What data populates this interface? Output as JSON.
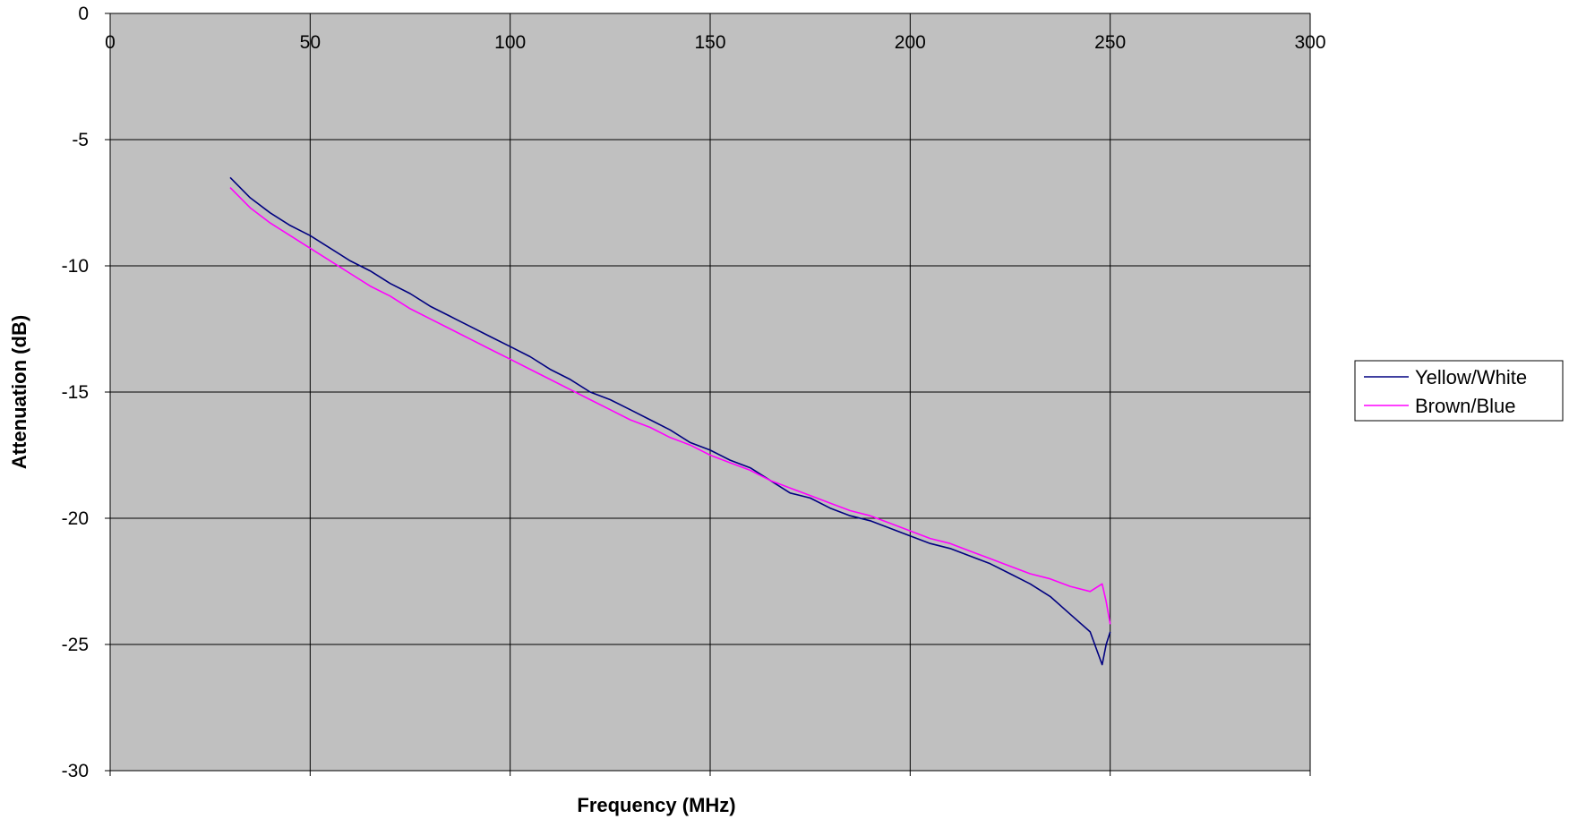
{
  "chart_data": {
    "type": "line",
    "xlabel": "Frequency (MHz)",
    "ylabel": "Attenuation (dB)",
    "xlim": [
      0,
      300
    ],
    "ylim": [
      -30,
      0
    ],
    "x_ticks": [
      0,
      50,
      100,
      150,
      200,
      250,
      300
    ],
    "y_ticks": [
      0,
      -5,
      -10,
      -15,
      -20,
      -25,
      -30
    ],
    "x_tick_labels": [
      "0",
      "50",
      "100",
      "150",
      "200",
      "250",
      "300"
    ],
    "y_tick_labels": [
      "0",
      "-5",
      "-10",
      "-15",
      "-20",
      "-25",
      "-30"
    ],
    "x_tick_position": "top",
    "grid": true,
    "plot_background": "#c0c0c0",
    "legend_placement": "right",
    "series": [
      {
        "name": "Yellow/White",
        "color": "#000080",
        "x": [
          30,
          35,
          40,
          45,
          50,
          55,
          60,
          65,
          70,
          75,
          80,
          85,
          90,
          95,
          100,
          105,
          110,
          115,
          120,
          125,
          130,
          135,
          140,
          145,
          150,
          155,
          160,
          165,
          170,
          175,
          180,
          185,
          190,
          195,
          200,
          205,
          210,
          215,
          220,
          225,
          230,
          235,
          240,
          245,
          248,
          249,
          250
        ],
        "y": [
          -6.5,
          -7.3,
          -7.9,
          -8.4,
          -8.8,
          -9.3,
          -9.8,
          -10.2,
          -10.7,
          -11.1,
          -11.6,
          -12.0,
          -12.4,
          -12.8,
          -13.2,
          -13.6,
          -14.1,
          -14.5,
          -15.0,
          -15.3,
          -15.7,
          -16.1,
          -16.5,
          -17.0,
          -17.3,
          -17.7,
          -18.0,
          -18.5,
          -19.0,
          -19.2,
          -19.6,
          -19.9,
          -20.1,
          -20.4,
          -20.7,
          -21.0,
          -21.2,
          -21.5,
          -21.8,
          -22.2,
          -22.6,
          -23.1,
          -23.8,
          -24.5,
          -25.8,
          -25.0,
          -24.5
        ]
      },
      {
        "name": "Brown/Blue",
        "color": "#ff00ff",
        "x": [
          30,
          35,
          40,
          45,
          50,
          55,
          60,
          65,
          70,
          75,
          80,
          85,
          90,
          95,
          100,
          105,
          110,
          115,
          120,
          125,
          130,
          135,
          140,
          145,
          150,
          155,
          160,
          165,
          170,
          175,
          180,
          185,
          190,
          195,
          200,
          205,
          210,
          215,
          220,
          225,
          230,
          235,
          240,
          245,
          248,
          249,
          250
        ],
        "y": [
          -6.9,
          -7.7,
          -8.3,
          -8.8,
          -9.3,
          -9.8,
          -10.3,
          -10.8,
          -11.2,
          -11.7,
          -12.1,
          -12.5,
          -12.9,
          -13.3,
          -13.7,
          -14.1,
          -14.5,
          -14.9,
          -15.3,
          -15.7,
          -16.1,
          -16.4,
          -16.8,
          -17.1,
          -17.5,
          -17.8,
          -18.1,
          -18.5,
          -18.8,
          -19.1,
          -19.4,
          -19.7,
          -19.9,
          -20.2,
          -20.5,
          -20.8,
          -21.0,
          -21.3,
          -21.6,
          -21.9,
          -22.2,
          -22.4,
          -22.7,
          -22.9,
          -22.6,
          -23.3,
          -24.2
        ]
      }
    ]
  }
}
